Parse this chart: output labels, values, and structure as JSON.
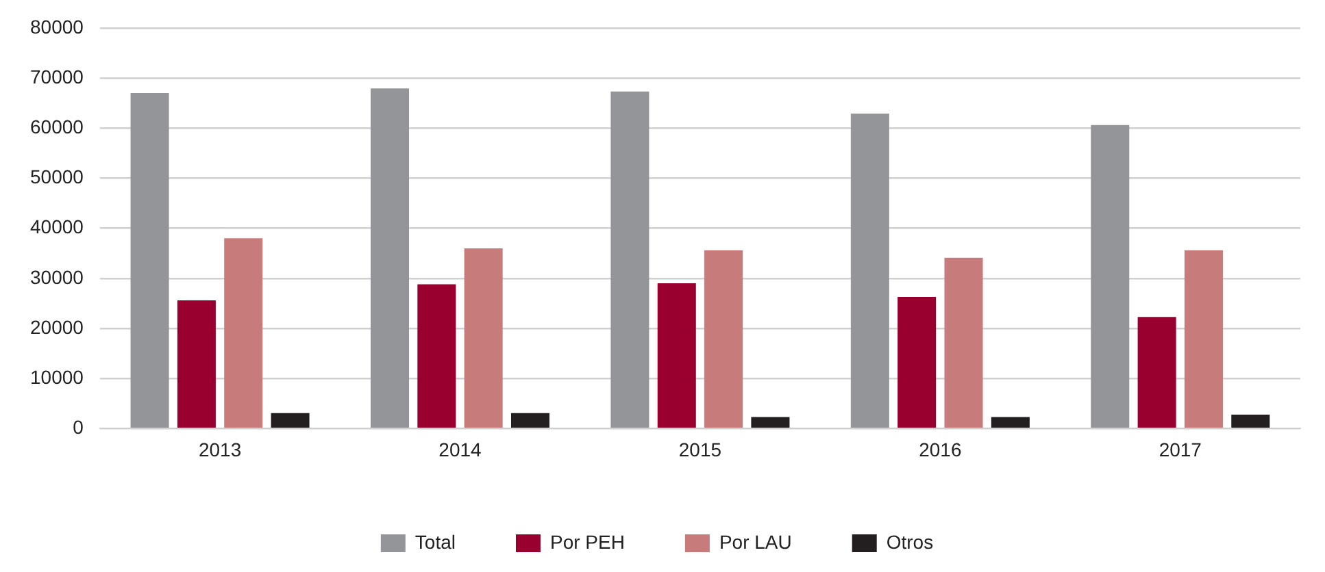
{
  "chart_data": {
    "type": "bar",
    "categories": [
      "2013",
      "2014",
      "2015",
      "2016",
      "2017"
    ],
    "series": [
      {
        "name": "Total",
        "color": "#939598",
        "values": [
          67000,
          67900,
          67300,
          62900,
          60600
        ]
      },
      {
        "name": "Por PEH",
        "color": "#990030",
        "values": [
          25600,
          28800,
          29000,
          26300,
          22300
        ]
      },
      {
        "name": "Por LAU",
        "color": "#c77b7b",
        "values": [
          38000,
          36000,
          35600,
          34100,
          35600
        ]
      },
      {
        "name": "Otros",
        "color": "#231f20",
        "values": [
          3100,
          3100,
          2300,
          2300,
          2800
        ]
      }
    ],
    "ylim": [
      0,
      80000
    ],
    "yticks": [
      0,
      10000,
      20000,
      30000,
      40000,
      50000,
      60000,
      70000,
      80000
    ],
    "grid": "y",
    "legend": "bottom"
  }
}
